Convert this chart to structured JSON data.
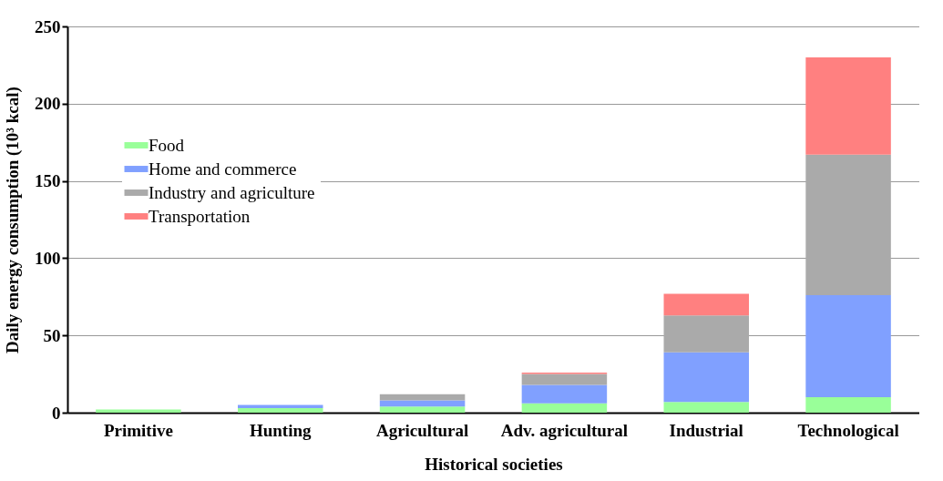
{
  "chart_data": {
    "type": "bar",
    "stacked": true,
    "xlabel": "Historical societies",
    "ylabel": "Daily energy consumption (10³ kcal)",
    "categories": [
      "Primitive",
      "Hunting",
      "Agricultural",
      "Adv. agricultural",
      "Industrial",
      "Technological"
    ],
    "series": [
      {
        "name": "Food",
        "color": "#99ff99",
        "values": [
          2,
          3,
          4,
          6,
          7,
          10
        ]
      },
      {
        "name": "Home and commerce",
        "color": "#80a0ff",
        "values": [
          0,
          2,
          4,
          12,
          32,
          66
        ]
      },
      {
        "name": "Industry and agriculture",
        "color": "#aaaaaa",
        "values": [
          0,
          0,
          4,
          7,
          24,
          91
        ]
      },
      {
        "name": "Transportation",
        "color": "#ff8080",
        "values": [
          0,
          0,
          0,
          1,
          14,
          63
        ]
      }
    ],
    "ylim": [
      0,
      250
    ],
    "yticks": [
      0,
      50,
      100,
      150,
      200,
      250
    ],
    "grid": "y",
    "legend": "top left"
  }
}
